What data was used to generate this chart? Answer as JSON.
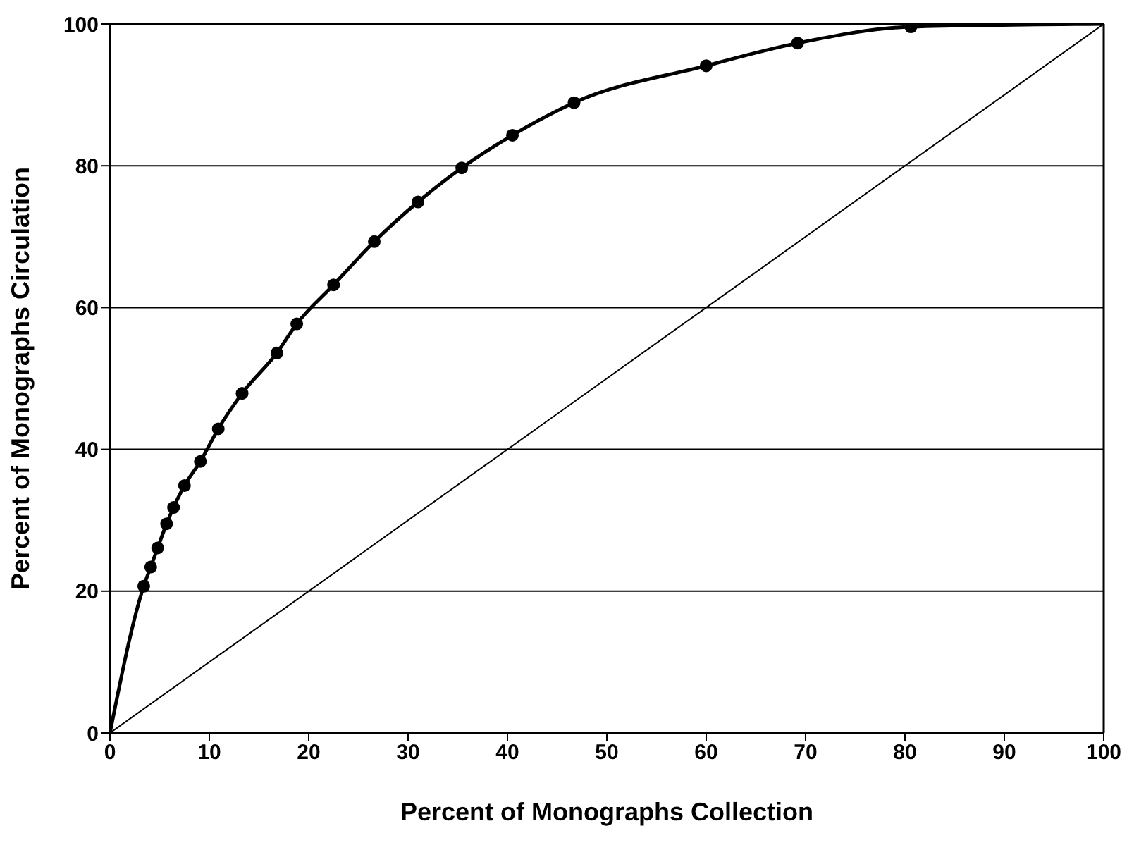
{
  "chart_data": {
    "type": "line",
    "xlabel": "Percent of Monographs Collection",
    "ylabel": "Percent of Monographs Circulation",
    "xlim": [
      0,
      100
    ],
    "ylim": [
      0,
      100
    ],
    "xticks": [
      0,
      10,
      20,
      30,
      40,
      50,
      60,
      70,
      80,
      90,
      100
    ],
    "yticks": [
      0,
      20,
      40,
      60,
      80,
      100
    ],
    "grid": "y",
    "series": [
      {
        "color": "#000000",
        "marker": "none",
        "x": [
          0,
          3.4,
          4.1,
          4.8,
          5.7,
          6.4,
          7.5,
          9.1,
          10.9,
          13.3,
          16.8,
          18.8,
          22.5,
          26.6,
          31.0,
          35.4,
          40.5,
          46.7,
          60.0,
          69.2,
          80.6,
          100
        ],
        "values": [
          0,
          20.7,
          23.4,
          26.1,
          29.5,
          31.8,
          34.9,
          38.3,
          42.9,
          47.9,
          53.6,
          57.7,
          63.2,
          69.3,
          74.9,
          79.7,
          84.3,
          88.9,
          94.1,
          97.3,
          99.6,
          100
        ]
      },
      {
        "type": "scatter",
        "color": "#000000",
        "marker": "circle",
        "x": [
          3.4,
          4.1,
          4.8,
          5.7,
          6.4,
          7.5,
          9.1,
          10.9,
          13.3,
          16.8,
          18.8,
          22.5,
          26.6,
          31.0,
          35.4,
          40.5,
          46.7,
          60.0,
          69.2,
          80.6
        ],
        "values": [
          20.7,
          23.4,
          26.1,
          29.5,
          31.8,
          34.9,
          38.3,
          42.9,
          47.9,
          53.6,
          57.7,
          63.2,
          69.3,
          74.9,
          79.7,
          84.3,
          88.9,
          94.1,
          97.3,
          99.6
        ]
      },
      {
        "color": "#000000",
        "marker": "none",
        "x": [
          0,
          100
        ],
        "values": [
          0,
          100
        ]
      }
    ]
  }
}
